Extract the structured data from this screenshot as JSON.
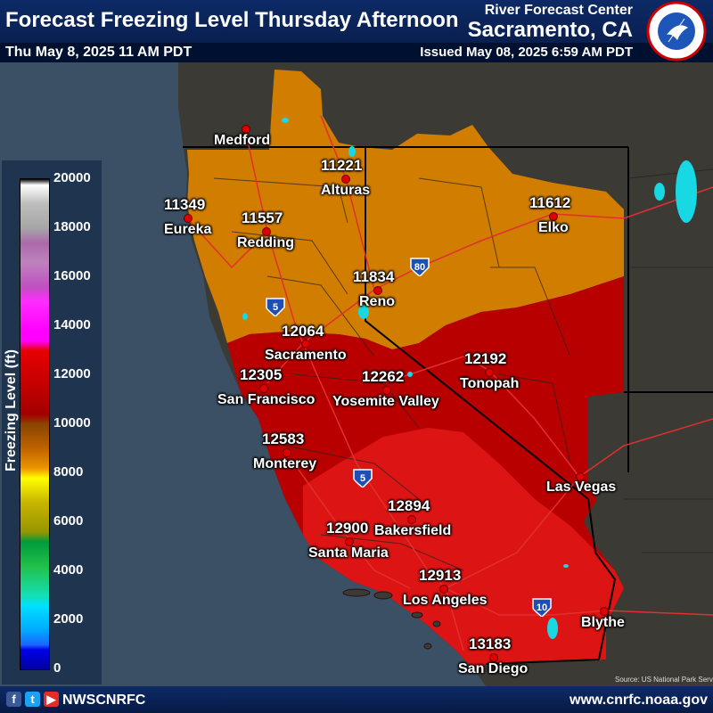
{
  "header": {
    "title": "Forecast Freezing Level Thursday Afternoon",
    "valid_time": "Thu May 8, 2025 11 AM PDT",
    "office_label": "River Forecast Center",
    "office_city": "Sacramento, CA",
    "issued": "Issued May 08, 2025 6:59 AM PDT",
    "logo_text": "NATIONAL WEATHER SERVICE"
  },
  "legend": {
    "title": "Freezing Level (ft)",
    "ticks": [
      "20000",
      "18000",
      "16000",
      "14000",
      "12000",
      "10000",
      "8000",
      "6000",
      "4000",
      "2000",
      "0"
    ]
  },
  "colors": {
    "band_10_12k": "#d17d00",
    "band_12_13k": "#b90000",
    "band_13k_plus": "#dc1414",
    "land": "#3c3a34",
    "ocean": "#3b5064",
    "lakes": "#18d8e4",
    "roads": "#e03030"
  },
  "cities": [
    {
      "name": "Medford",
      "value": ""
    },
    {
      "name": "Alturas",
      "value": "11221"
    },
    {
      "name": "Eureka",
      "value": "11349"
    },
    {
      "name": "Redding",
      "value": "11557"
    },
    {
      "name": "Elko",
      "value": "11612"
    },
    {
      "name": "Reno",
      "value": "11834"
    },
    {
      "name": "Sacramento",
      "value": "12064"
    },
    {
      "name": "San Francisco",
      "value": "12305"
    },
    {
      "name": "Yosemite Valley",
      "value": "12262"
    },
    {
      "name": "Tonopah",
      "value": "12192"
    },
    {
      "name": "Monterey",
      "value": "12583"
    },
    {
      "name": "Las Vegas",
      "value": ""
    },
    {
      "name": "Bakersfield",
      "value": "12894"
    },
    {
      "name": "Santa Maria",
      "value": "12900"
    },
    {
      "name": "Los Angeles",
      "value": "12913"
    },
    {
      "name": "Blythe",
      "value": ""
    },
    {
      "name": "San Diego",
      "value": "13183"
    }
  ],
  "highways": [
    "5",
    "80",
    "5",
    "10"
  ],
  "credit": "Source: US National Park Service",
  "footer": {
    "handle": "NWSCNRFC",
    "url": "www.cnrfc.noaa.gov",
    "social_icons": [
      "facebook-icon",
      "twitter-icon",
      "youtube-icon"
    ]
  }
}
